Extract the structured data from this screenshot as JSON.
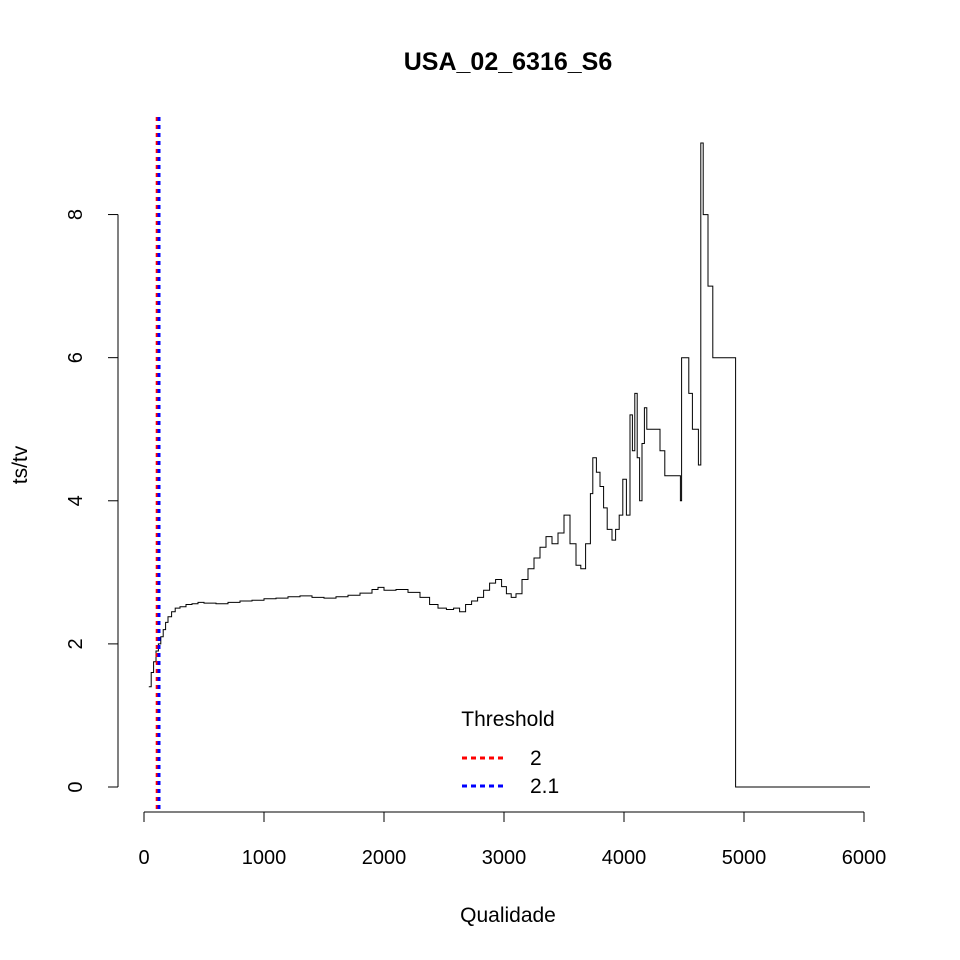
{
  "chart_data": {
    "type": "line",
    "title": "USA_02_6316_S6",
    "xlabel": "Qualidade",
    "ylabel": "ts/tv",
    "xlim": [
      0,
      6000
    ],
    "ylim": [
      0,
      9
    ],
    "x_ticks": [
      "0",
      "1000",
      "2000",
      "3000",
      "4000",
      "5000",
      "6000"
    ],
    "y_ticks": [
      "0",
      "2",
      "4",
      "6",
      "8"
    ],
    "grid": false,
    "series": [
      {
        "color": "#000000",
        "step": true,
        "points": [
          [
            40,
            1.4
          ],
          [
            60,
            1.6
          ],
          [
            80,
            1.75
          ],
          [
            100,
            1.9
          ],
          [
            120,
            2.0
          ],
          [
            140,
            2.1
          ],
          [
            160,
            2.2
          ],
          [
            180,
            2.3
          ],
          [
            200,
            2.38
          ],
          [
            230,
            2.45
          ],
          [
            260,
            2.5
          ],
          [
            300,
            2.52
          ],
          [
            350,
            2.55
          ],
          [
            400,
            2.56
          ],
          [
            450,
            2.58
          ],
          [
            500,
            2.57
          ],
          [
            600,
            2.56
          ],
          [
            700,
            2.58
          ],
          [
            800,
            2.6
          ],
          [
            900,
            2.61
          ],
          [
            1000,
            2.63
          ],
          [
            1100,
            2.64
          ],
          [
            1200,
            2.66
          ],
          [
            1300,
            2.67
          ],
          [
            1400,
            2.65
          ],
          [
            1500,
            2.64
          ],
          [
            1600,
            2.66
          ],
          [
            1700,
            2.68
          ],
          [
            1800,
            2.71
          ],
          [
            1900,
            2.76
          ],
          [
            1950,
            2.79
          ],
          [
            2000,
            2.75
          ],
          [
            2100,
            2.76
          ],
          [
            2200,
            2.72
          ],
          [
            2300,
            2.65
          ],
          [
            2380,
            2.55
          ],
          [
            2450,
            2.5
          ],
          [
            2520,
            2.48
          ],
          [
            2580,
            2.5
          ],
          [
            2630,
            2.45
          ],
          [
            2680,
            2.55
          ],
          [
            2730,
            2.6
          ],
          [
            2780,
            2.65
          ],
          [
            2830,
            2.75
          ],
          [
            2880,
            2.85
          ],
          [
            2930,
            2.9
          ],
          [
            2980,
            2.8
          ],
          [
            3020,
            2.7
          ],
          [
            3060,
            2.65
          ],
          [
            3100,
            2.7
          ],
          [
            3150,
            2.9
          ],
          [
            3200,
            3.05
          ],
          [
            3250,
            3.2
          ],
          [
            3300,
            3.35
          ],
          [
            3350,
            3.5
          ],
          [
            3400,
            3.4
          ],
          [
            3450,
            3.55
          ],
          [
            3500,
            3.8
          ],
          [
            3550,
            3.4
          ],
          [
            3600,
            3.1
          ],
          [
            3640,
            3.05
          ],
          [
            3680,
            3.4
          ],
          [
            3720,
            4.1
          ],
          [
            3740,
            4.6
          ],
          [
            3770,
            4.4
          ],
          [
            3800,
            4.2
          ],
          [
            3830,
            3.9
          ],
          [
            3860,
            3.6
          ],
          [
            3900,
            3.45
          ],
          [
            3930,
            3.6
          ],
          [
            3960,
            3.8
          ],
          [
            3990,
            4.3
          ],
          [
            4020,
            3.8
          ],
          [
            4050,
            5.2
          ],
          [
            4070,
            4.7
          ],
          [
            4090,
            5.5
          ],
          [
            4110,
            4.6
          ],
          [
            4130,
            4.0
          ],
          [
            4150,
            4.8
          ],
          [
            4170,
            5.3
          ],
          [
            4190,
            5.0
          ],
          [
            4300,
            4.7
          ],
          [
            4340,
            4.35
          ],
          [
            4470,
            4.0
          ],
          [
            4480,
            6.0
          ],
          [
            4540,
            5.5
          ],
          [
            4570,
            5.0
          ],
          [
            4620,
            4.5
          ],
          [
            4640,
            9.0
          ],
          [
            4660,
            8.0
          ],
          [
            4700,
            7.0
          ],
          [
            4740,
            6.0
          ],
          [
            4930,
            0.0
          ],
          [
            6050,
            0.0
          ]
        ]
      }
    ],
    "thresholds": [
      {
        "name": "2",
        "x": 110,
        "color": "#ff0000"
      },
      {
        "name": "2.1",
        "x": 125,
        "color": "#0000ff"
      }
    ],
    "legend": {
      "title": "Threshold",
      "placement": "bottom-center",
      "entries": [
        "2",
        "2.1"
      ]
    }
  }
}
